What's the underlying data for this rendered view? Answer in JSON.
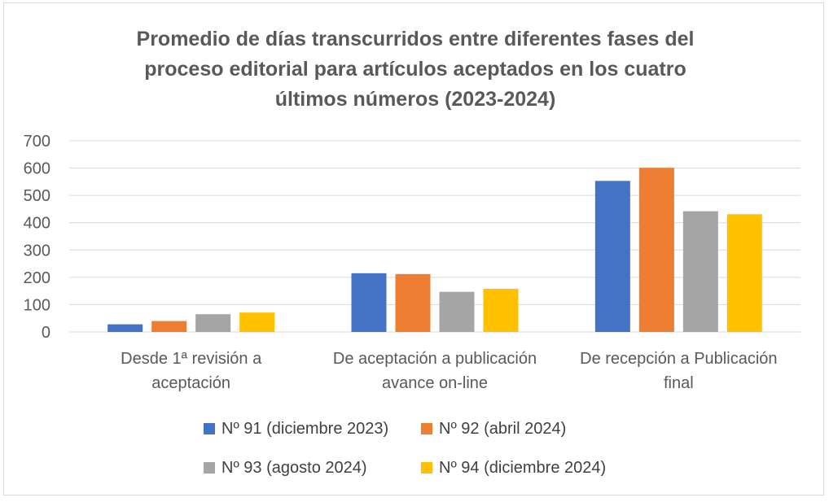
{
  "chart_data": {
    "type": "bar",
    "title_lines": [
      "Promedio de días transcurridos entre diferentes fases del",
      "proceso editorial para artículos aceptados en los cuatro",
      "últimos números (2023-2024)"
    ],
    "categories": [
      [
        "Desde 1ª revisión a",
        "aceptación"
      ],
      [
        "De aceptación a publicación",
        "avance on-line"
      ],
      [
        "De recepción a Publicación",
        "final"
      ]
    ],
    "series": [
      {
        "name": "Nº 91 (diciembre 2023)",
        "color": "#4472c4",
        "values": [
          28,
          215,
          553
        ]
      },
      {
        "name": "Nº 92 (abril 2024)",
        "color": "#ed7d31",
        "values": [
          40,
          212,
          601
        ]
      },
      {
        "name": "Nº 93 (agosto 2024)",
        "color": "#a5a5a5",
        "values": [
          65,
          147,
          442
        ]
      },
      {
        "name": "Nº 94 (diciembre 2024)",
        "color": "#ffc000",
        "values": [
          71,
          158,
          431
        ]
      }
    ],
    "yticks": [
      "0",
      "100",
      "200",
      "300",
      "400",
      "500",
      "600",
      "700"
    ],
    "ylim": [
      0,
      700
    ],
    "xlabel": "",
    "ylabel": "",
    "grid": true,
    "legend_position": "bottom"
  }
}
